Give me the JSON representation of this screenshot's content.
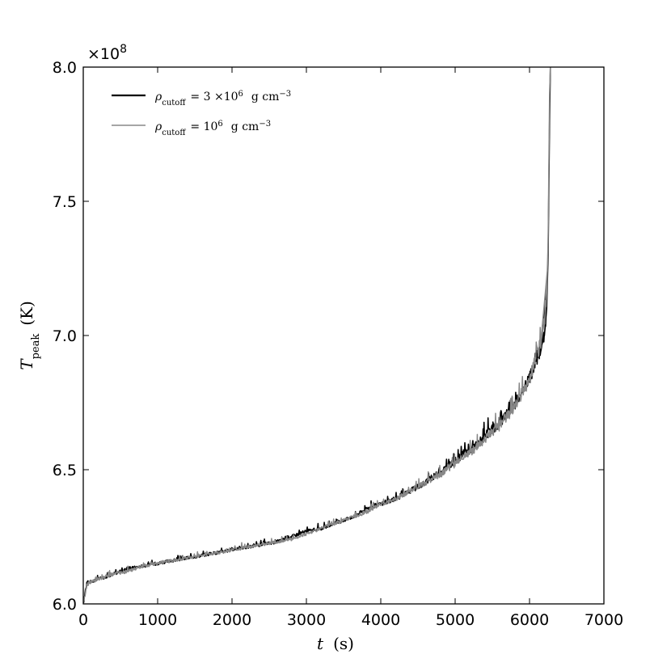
{
  "chart_data": {
    "type": "line",
    "offset_label": {
      "base": "×10",
      "exp": "8"
    },
    "xlabel": {
      "var": "t",
      "unit": "(s)"
    },
    "ylabel": {
      "var": "T",
      "sub": "peak",
      "unit": "(K)"
    },
    "xlim": [
      0,
      7000
    ],
    "ylim": [
      6.0,
      8.0
    ],
    "x_ticks": [
      "0",
      "1000",
      "2000",
      "3000",
      "4000",
      "5000",
      "6000",
      "7000"
    ],
    "y_ticks": [
      "6.0",
      "6.5",
      "7.0",
      "7.5",
      "8.0"
    ],
    "x_tick_values": [
      0,
      1000,
      2000,
      3000,
      4000,
      5000,
      6000,
      7000
    ],
    "y_tick_values": [
      6.0,
      6.5,
      7.0,
      7.5,
      8.0
    ],
    "grid": false,
    "legend_position": "top-left",
    "series": [
      {
        "name": "ρcutoff = 3 ×10^6 g cm^−3",
        "legend": {
          "rho": "ρ",
          "sub": "cutoff",
          "eq": "= 3 ×10",
          "exp1": "6",
          "unit": "g cm",
          "exp2": "−3"
        },
        "color": "#000000",
        "x": [
          0,
          50,
          100,
          200,
          400,
          600,
          800,
          1000,
          1200,
          1400,
          1600,
          1800,
          2000,
          2200,
          2400,
          2600,
          2800,
          3000,
          3200,
          3400,
          3600,
          3800,
          4000,
          4200,
          4400,
          4600,
          4800,
          5000,
          5200,
          5400,
          5600,
          5800,
          5900,
          6000,
          6050,
          6100,
          6150,
          6200,
          6230,
          6250,
          6270,
          6280
        ],
        "y": [
          6.0,
          6.08,
          6.08,
          6.09,
          6.11,
          6.13,
          6.14,
          6.15,
          6.16,
          6.17,
          6.18,
          6.19,
          6.2,
          6.21,
          6.22,
          6.23,
          6.25,
          6.27,
          6.28,
          6.3,
          6.32,
          6.35,
          6.37,
          6.39,
          6.42,
          6.45,
          6.49,
          6.53,
          6.57,
          6.62,
          6.67,
          6.74,
          6.78,
          6.84,
          6.87,
          6.9,
          6.95,
          7.0,
          7.1,
          7.3,
          7.8,
          8.0
        ]
      },
      {
        "name": "ρcutoff = 10^6 g cm^−3",
        "legend": {
          "rho": "ρ",
          "sub": "cutoff",
          "eq": "= 10",
          "exp1": "6",
          "unit": "g cm",
          "exp2": "−3"
        },
        "color": "#888888",
        "x": [
          0,
          50,
          100,
          200,
          400,
          600,
          800,
          1000,
          1200,
          1400,
          1600,
          1800,
          2000,
          2200,
          2400,
          2600,
          2800,
          3000,
          3200,
          3400,
          3600,
          3800,
          4000,
          4200,
          4400,
          4600,
          4800,
          5000,
          5200,
          5400,
          5600,
          5800,
          5900,
          6000,
          6050,
          6100,
          6150,
          6200,
          6230,
          6250,
          6270,
          6280
        ],
        "y": [
          6.0,
          6.07,
          6.08,
          6.09,
          6.11,
          6.12,
          6.14,
          6.15,
          6.16,
          6.17,
          6.18,
          6.19,
          6.2,
          6.21,
          6.22,
          6.23,
          6.24,
          6.26,
          6.28,
          6.3,
          6.32,
          6.34,
          6.37,
          6.39,
          6.42,
          6.45,
          6.48,
          6.52,
          6.56,
          6.61,
          6.66,
          6.73,
          6.78,
          6.83,
          6.88,
          6.92,
          6.97,
          7.05,
          7.15,
          7.35,
          7.9,
          8.0
        ]
      }
    ]
  }
}
